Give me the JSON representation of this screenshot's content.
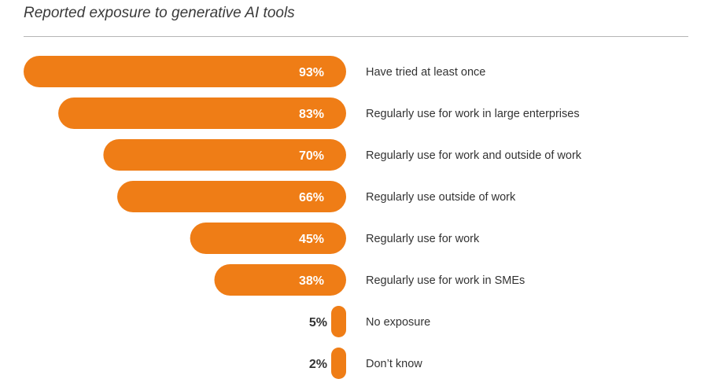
{
  "chart_data": {
    "type": "bar",
    "orientation": "horizontal",
    "title": "Reported exposure to generative AI tools",
    "categories": [
      "Have tried at least once",
      "Regularly use for work in large enterprises",
      "Regularly use for work and outside of work",
      "Regularly use outside of work",
      "Regularly use for work",
      "Regularly use for work in SMEs",
      "No exposure",
      "Don’t know"
    ],
    "values": [
      93,
      83,
      70,
      66,
      45,
      38,
      5,
      2
    ],
    "value_labels": [
      "93%",
      "83%",
      "70%",
      "66%",
      "45%",
      "38%",
      "5%",
      "2%"
    ],
    "unit": "%",
    "xlim": [
      0,
      100
    ],
    "grid": false,
    "bar_color": "#EF7D16",
    "label_color_inside": "#ffffff",
    "label_color_outside": "#333333"
  }
}
